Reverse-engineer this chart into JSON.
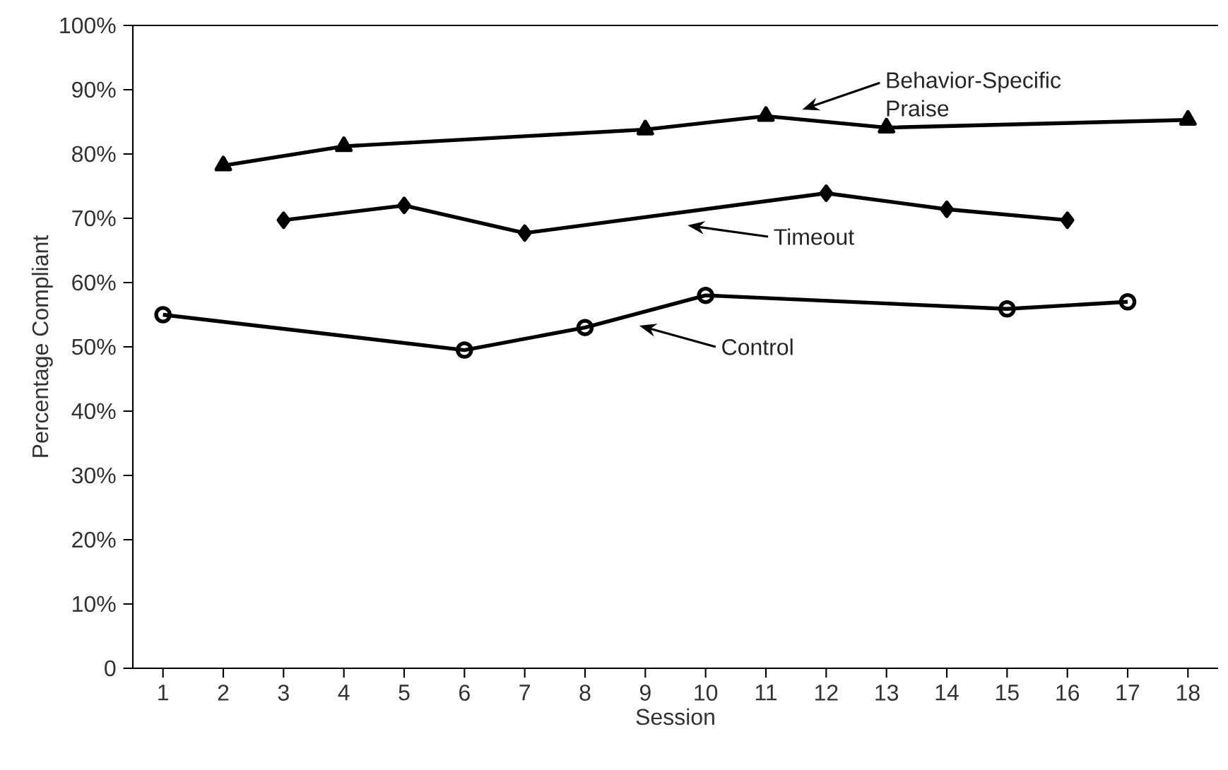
{
  "chart_data": {
    "type": "line",
    "xlabel": "Session",
    "ylabel": "Percentage Compliant",
    "xlim": [
      0.5,
      18.5
    ],
    "xticks": [
      1,
      2,
      3,
      4,
      5,
      6,
      7,
      8,
      9,
      10,
      11,
      12,
      13,
      14,
      15,
      16,
      17,
      18
    ],
    "ylim": [
      0,
      100
    ],
    "yticks": [
      {
        "value": 0,
        "label": "0"
      },
      {
        "value": 10,
        "label": "10%"
      },
      {
        "value": 20,
        "label": "20%"
      },
      {
        "value": 30,
        "label": "30%"
      },
      {
        "value": 40,
        "label": "40%"
      },
      {
        "value": 50,
        "label": "50%"
      },
      {
        "value": 60,
        "label": "60%"
      },
      {
        "value": 70,
        "label": "70%"
      },
      {
        "value": 80,
        "label": "80%"
      },
      {
        "value": 90,
        "label": "90%"
      },
      {
        "value": 100,
        "label": "100%"
      }
    ],
    "grid": false,
    "line_style": "solid",
    "series": [
      {
        "color": "#000000",
        "marker": "triangle",
        "x": [
          2,
          4,
          9,
          11,
          13,
          18
        ],
        "values": [
          78.2,
          81.2,
          83.8,
          85.9,
          84.1,
          85.3
        ]
      },
      {
        "color": "#000000",
        "marker": "diamond",
        "x": [
          3,
          5,
          7,
          12,
          14,
          16
        ],
        "values": [
          69.7,
          72.0,
          67.7,
          73.9,
          71.4,
          69.7
        ]
      },
      {
        "color": "#000000",
        "marker": "circle",
        "x": [
          1,
          6,
          8,
          10,
          15,
          17
        ],
        "values": [
          55.0,
          49.5,
          53.0,
          58.0,
          55.9,
          57.0
        ]
      }
    ],
    "annotations": [
      "Behavior-Specific Praise",
      "Timeout",
      "Control"
    ]
  }
}
